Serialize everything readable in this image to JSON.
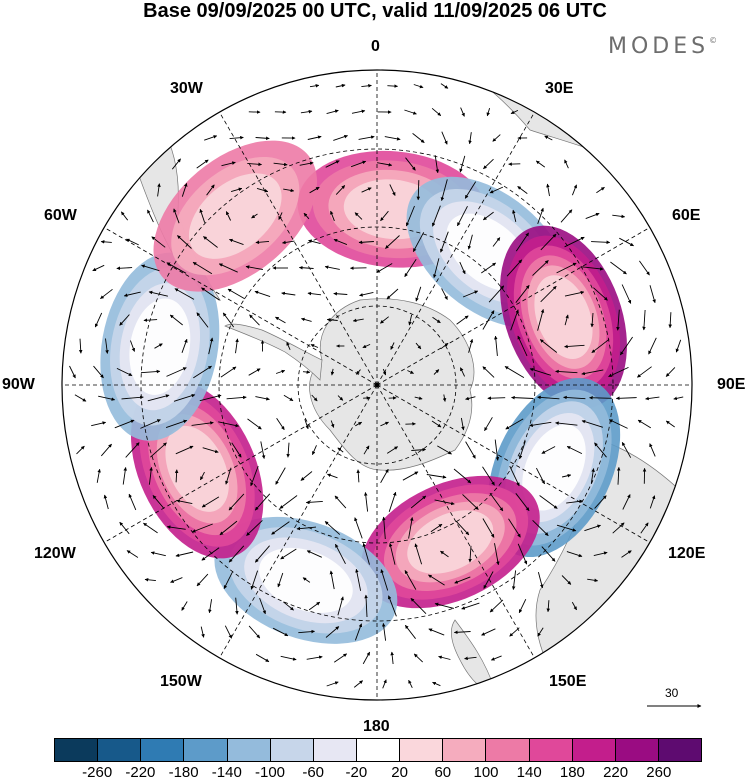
{
  "title": "Base 09/09/2025 00 UTC, valid 11/09/2025 06 UTC",
  "brand": "MODES",
  "brand_mark": "©",
  "longitude_labels": {
    "top": "0",
    "lon30e": "30E",
    "lon60e": "60E",
    "lon90e": "90E",
    "lon120e": "120E",
    "lon150e": "150E",
    "bottom": "180",
    "lon150w": "150W",
    "lon120w": "120W",
    "lon90w": "90W",
    "lon60w": "60W",
    "lon30w": "30W"
  },
  "reference_vector_label": "30",
  "colorbar": {
    "colors": [
      "#0b3a5c",
      "#17598a",
      "#2f7bb3",
      "#5d9bc9",
      "#94bbdc",
      "#c7d6ea",
      "#e7e7f3",
      "#ffffff",
      "#fad7dc",
      "#f5acbe",
      "#ed7aa6",
      "#e0489a",
      "#c31e8c",
      "#9a0c82",
      "#5e0b70"
    ],
    "ticks": [
      "-260",
      "-220",
      "-180",
      "-140",
      "-100",
      "-60",
      "-20",
      "20",
      "60",
      "100",
      "140",
      "180",
      "220",
      "260"
    ]
  },
  "anomaly_centers": [
    {
      "lon": 5,
      "lat_from_center": 0.56,
      "value": 150
    },
    {
      "lon": 40,
      "lat_from_center": 0.55,
      "value": -160
    },
    {
      "lon": 70,
      "lat_from_center": 0.63,
      "value": 230
    },
    {
      "lon": 115,
      "lat_from_center": 0.62,
      "value": -170
    },
    {
      "lon": 155,
      "lat_from_center": 0.55,
      "value": 190
    },
    {
      "lon": 200,
      "lat_from_center": 0.66,
      "value": -150
    },
    {
      "lon": 245,
      "lat_from_center": 0.63,
      "value": 170
    },
    {
      "lon": 280,
      "lat_from_center": 0.7,
      "value": -140
    },
    {
      "lon": 320,
      "lat_from_center": 0.7,
      "value": 110
    }
  ]
}
